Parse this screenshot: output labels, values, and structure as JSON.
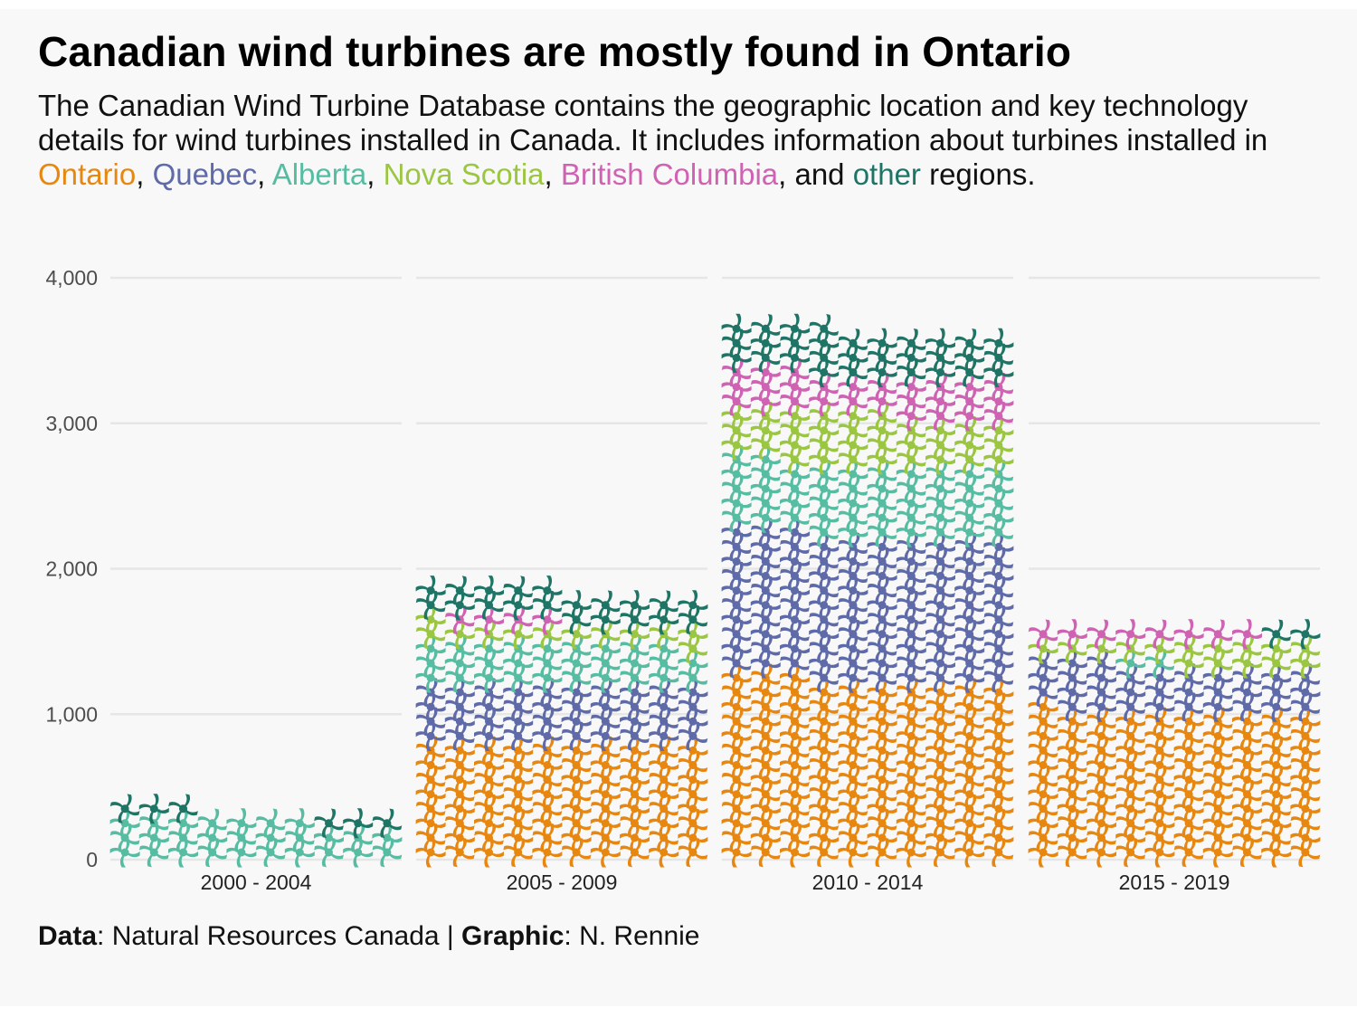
{
  "title": "Canadian wind turbines are mostly found in Ontario",
  "subtitle": {
    "intro": "The Canadian Wind Turbine Database contains the geographic location and key technology details for wind turbines installed in Canada. It includes information about turbines installed in ",
    "sep1": ", ",
    "sep2": ", ",
    "sep3": ", ",
    "sep4": ", ",
    "sep5": ", and ",
    "outro": " regions.",
    "regions": [
      {
        "label": "Ontario",
        "color": "#e7870f"
      },
      {
        "label": "Quebec",
        "color": "#5f6aa8"
      },
      {
        "label": "Alberta",
        "color": "#56bca2"
      },
      {
        "label": "Nova Scotia",
        "color": "#9bc641"
      },
      {
        "label": "British Columbia",
        "color": "#cf62b2"
      },
      {
        "label": "other",
        "color": "#1e7566"
      }
    ]
  },
  "caption": {
    "data_label": "Data",
    "data_value": ": Natural Resources Canada | ",
    "graphic_label": "Graphic",
    "graphic_value": ": N. Rennie"
  },
  "chart_data": {
    "type": "bar",
    "subtype": "stacked pictogram waffle (wind-turbine icons, 10 icons per row)",
    "categories": [
      "2000 - 2004",
      "2005 - 2009",
      "2010 - 2014",
      "2015 - 2019"
    ],
    "y_ticks": [
      "0",
      "1,000",
      "2,000",
      "3,000",
      "4,000"
    ],
    "ylim": [
      0,
      4000
    ],
    "grid": true,
    "xlabel": "",
    "ylabel": "",
    "series": [
      {
        "name": "Ontario",
        "color": "#e7870f",
        "values": [
          0,
          800,
          1230,
          1010
        ]
      },
      {
        "name": "Quebec",
        "color": "#5f6aa8",
        "values": [
          0,
          400,
          1000,
          320
        ]
      },
      {
        "name": "Alberta",
        "color": "#56bca2",
        "values": [
          270,
          290,
          490,
          20
        ]
      },
      {
        "name": "Nova Scotia",
        "color": "#9bc641",
        "values": [
          0,
          120,
          340,
          150
        ]
      },
      {
        "name": "British Columbia",
        "color": "#cf62b2",
        "values": [
          0,
          40,
          270,
          80
        ]
      },
      {
        "name": "other",
        "color": "#1e7566",
        "values": [
          60,
          200,
          310,
          20
        ]
      }
    ]
  }
}
